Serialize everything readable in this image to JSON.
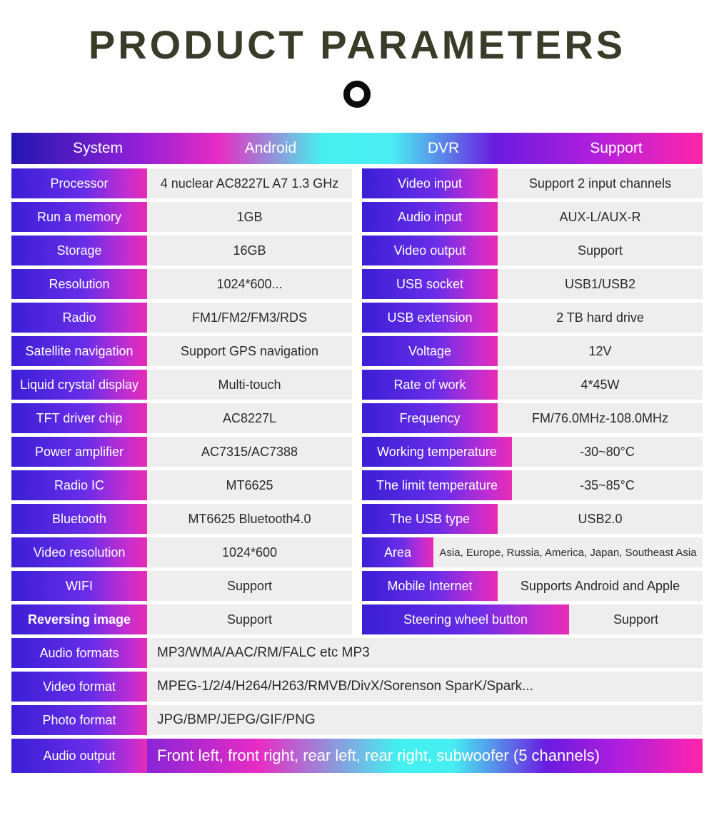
{
  "title": "PRODUCT PARAMETERS",
  "header_row": {
    "c1": "System",
    "c2": "Android",
    "c3": "DVR",
    "c4": "Support"
  },
  "left": [
    {
      "label": "Processor",
      "value": "4 nuclear   AC8227L A7 1.3 GHz"
    },
    {
      "label": "Run a memory",
      "value": "1GB"
    },
    {
      "label": "Storage",
      "value": "16GB"
    },
    {
      "label": "Resolution",
      "value": "1024*600..."
    },
    {
      "label": "Radio",
      "value": "FM1/FM2/FM3/RDS"
    },
    {
      "label": "Satellite navigation",
      "value": "Support GPS navigation"
    },
    {
      "label": "Liquid crystal display",
      "value": "Multi-touch"
    },
    {
      "label": "TFT driver chip",
      "value": "AC8227L"
    },
    {
      "label": "Power amplifier",
      "value": "AC7315/AC7388"
    },
    {
      "label": "Radio IC",
      "value": "MT6625"
    },
    {
      "label": "Bluetooth",
      "value": "MT6625 Bluetooth4.0"
    },
    {
      "label": "Video resolution",
      "value": "1024*600"
    },
    {
      "label": "WIFI",
      "value": "Support"
    },
    {
      "label": "Reversing image",
      "value": "Support",
      "bold": true
    }
  ],
  "right": [
    {
      "label": "Video input",
      "value": "Support 2 input channels"
    },
    {
      "label": "Audio input",
      "value": "AUX-L/AUX-R"
    },
    {
      "label": "Video output",
      "value": "Support"
    },
    {
      "label": "USB socket",
      "value": "USB1/USB2"
    },
    {
      "label": "USB extension",
      "value": "2 TB hard drive"
    },
    {
      "label": "Voltage",
      "value": "12V"
    },
    {
      "label": "Rate of work",
      "value": "4*45W"
    },
    {
      "label": "Frequency",
      "value": "FM/76.0MHz-108.0MHz"
    },
    {
      "label": "Working temperature",
      "value": "-30~80°C",
      "wider": true
    },
    {
      "label": "The limit temperature",
      "value": "-35~85°C",
      "wider": true
    },
    {
      "label": "The USB type",
      "value": "USB2.0"
    },
    {
      "label": "Area",
      "value": "Asia, Europe, Russia, America, Japan, Southeast Asia",
      "narrow": true,
      "small": true
    },
    {
      "label": "Mobile Internet",
      "value": "Supports Android and Apple"
    },
    {
      "label": "Steering wheel button",
      "value": "Support",
      "steering": true
    }
  ],
  "full": [
    {
      "label": "Audio formats",
      "value": "MP3/WMA/AAC/RM/FALC etc MP3"
    },
    {
      "label": "Video format",
      "value": "MPEG-1/2/4/H264/H263/RMVB/DivX/Sorenson SparK/Spark..."
    },
    {
      "label": "Photo format",
      "value": "JPG/BMP/JEPG/GIF/PNG"
    }
  ],
  "audio_output": {
    "label": "Audio output",
    "value": "Front left, front right, rear left, rear right, subwoofer (5 channels)"
  }
}
